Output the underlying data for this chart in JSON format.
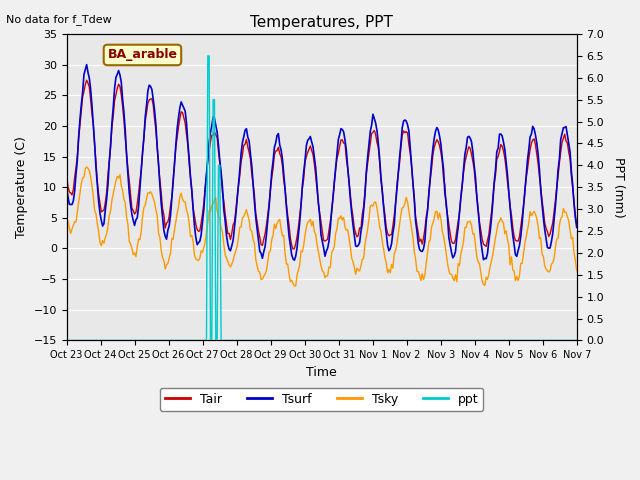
{
  "title": "Temperatures, PPT",
  "subtitle": "No data for f_Tdew",
  "label_box": "BA_arable",
  "xlabel": "Time",
  "ylabel_left": "Temperature (C)",
  "ylabel_right": "PPT (mm)",
  "ylim_left": [
    -15,
    35
  ],
  "ylim_right": [
    0.0,
    7.0
  ],
  "yticks_left": [
    -15,
    -10,
    -5,
    0,
    5,
    10,
    15,
    20,
    25,
    30,
    35
  ],
  "yticks_right": [
    0.0,
    0.5,
    1.0,
    1.5,
    2.0,
    2.5,
    3.0,
    3.5,
    4.0,
    4.5,
    5.0,
    5.5,
    6.0,
    6.5,
    7.0
  ],
  "xtick_labels": [
    "Oct 23",
    "Oct 24",
    "Oct 25",
    "Oct 26",
    "Oct 27",
    "Oct 28",
    "Oct 29",
    "Oct 30",
    "Oct 31",
    "Nov 1",
    "Nov 2",
    "Nov 3",
    "Nov 4",
    "Nov 5",
    "Nov 6",
    "Nov 7"
  ],
  "colors": {
    "Tair": "#cc0000",
    "Tsurf": "#0000cc",
    "Tsky": "#ff9900",
    "ppt": "#00cccc",
    "background": "#e8e8e8",
    "box_fill": "#ffffcc",
    "box_edge": "#996600",
    "box_text": "#8B0000"
  },
  "n_days": 16
}
